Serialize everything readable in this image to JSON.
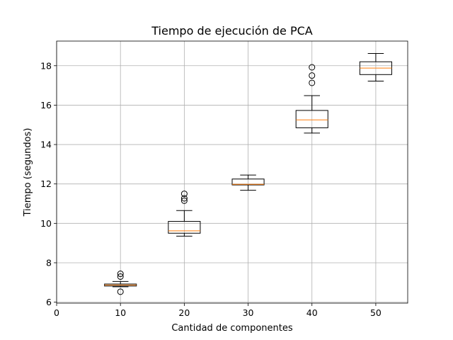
{
  "chart_data": {
    "type": "boxplot",
    "title": "Tiempo de ejecución de PCA",
    "xlabel": "Cantidad de componentes",
    "ylabel": "Tiempo (segundos)",
    "xlim": [
      0,
      55
    ],
    "ylim": [
      5.95,
      19.25
    ],
    "xticks": [
      0,
      10,
      20,
      30,
      40,
      50
    ],
    "yticks": [
      6,
      8,
      10,
      12,
      14,
      16,
      18
    ],
    "grid": true,
    "colors": {
      "box": "#000000",
      "median": "#ff7f0e",
      "grid": "#b0b0b0"
    },
    "boxes": [
      {
        "x": 10,
        "whisker_low": 6.78,
        "q1": 6.82,
        "median": 6.87,
        "q3": 6.92,
        "whisker_high": 7.05,
        "outliers": [
          6.53,
          7.3,
          7.44
        ]
      },
      {
        "x": 20,
        "whisker_low": 9.35,
        "q1": 9.5,
        "median": 9.62,
        "q3": 10.1,
        "whisker_high": 10.65,
        "outliers": [
          11.15,
          11.27,
          11.5
        ]
      },
      {
        "x": 30,
        "whisker_low": 11.68,
        "q1": 11.95,
        "median": 11.98,
        "q3": 12.25,
        "whisker_high": 12.45,
        "outliers": []
      },
      {
        "x": 40,
        "whisker_low": 14.58,
        "q1": 14.85,
        "median": 15.25,
        "q3": 15.73,
        "whisker_high": 16.48,
        "outliers": [
          17.13,
          17.5,
          17.92
        ]
      },
      {
        "x": 50,
        "whisker_low": 17.22,
        "q1": 17.55,
        "median": 17.88,
        "q3": 18.2,
        "whisker_high": 18.62,
        "outliers": []
      }
    ]
  }
}
